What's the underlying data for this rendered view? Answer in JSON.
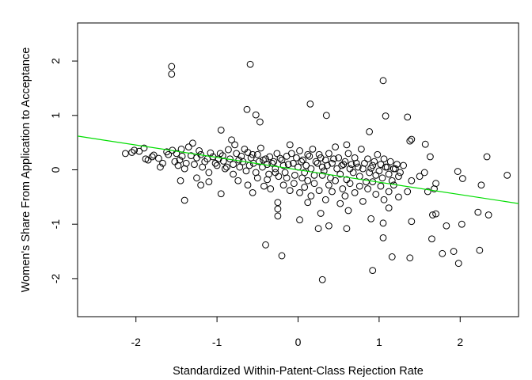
{
  "chart_data": {
    "type": "scatter",
    "xlabel": "Standardized Within-Patent-Class Rejection Rate",
    "ylabel": "Women's Share From Application to Acceptance",
    "xlim": [
      -2.72,
      2.72
    ],
    "ylim": [
      -2.7,
      2.7
    ],
    "xticks": [
      -2,
      -1,
      0,
      1,
      2
    ],
    "yticks": [
      -2,
      -1,
      0,
      1,
      2
    ],
    "grid": false,
    "point_color": "#000000",
    "fit_line": {
      "color": "#00dd00",
      "x": [
        -2.72,
        2.72
      ],
      "y": [
        0.62,
        -0.62
      ]
    },
    "points": [
      [
        -1.56,
        1.9
      ],
      [
        -1.56,
        1.76
      ],
      [
        -0.59,
        1.94
      ],
      [
        1.05,
        1.64
      ],
      [
        0.15,
        1.21
      ],
      [
        -0.63,
        1.11
      ],
      [
        -0.52,
        1.01
      ],
      [
        0.35,
        1.0
      ],
      [
        1.08,
        0.99
      ],
      [
        1.35,
        0.97
      ],
      [
        -0.47,
        0.88
      ],
      [
        0.88,
        0.7
      ],
      [
        -0.95,
        0.73
      ],
      [
        0.6,
        0.46
      ],
      [
        1.4,
        0.56
      ],
      [
        1.38,
        0.53
      ],
      [
        1.57,
        0.47
      ],
      [
        1.63,
        0.24
      ],
      [
        2.33,
        0.24
      ],
      [
        2.58,
        -0.1
      ],
      [
        1.97,
        -0.03
      ],
      [
        2.03,
        -0.16
      ],
      [
        2.26,
        -0.28
      ],
      [
        1.7,
        -0.25
      ],
      [
        1.68,
        -0.35
      ],
      [
        -2.13,
        0.3
      ],
      [
        -2.05,
        0.32
      ],
      [
        -2.02,
        0.36
      ],
      [
        -1.96,
        0.34
      ],
      [
        -1.88,
        0.2
      ],
      [
        -1.8,
        0.24
      ],
      [
        -1.72,
        0.21
      ],
      [
        -1.67,
        0.12
      ],
      [
        -1.6,
        0.28
      ],
      [
        -1.55,
        0.36
      ],
      [
        -1.5,
        0.3
      ],
      [
        -1.46,
        0.18
      ],
      [
        -1.43,
        0.25
      ],
      [
        -1.4,
        0.02
      ],
      [
        -1.35,
        0.42
      ],
      [
        -1.3,
        0.49
      ],
      [
        -1.25,
        0.22
      ],
      [
        -1.2,
        0.28
      ],
      [
        -1.18,
        0.05
      ],
      [
        -1.12,
        0.2
      ],
      [
        -1.08,
        0.31
      ],
      [
        -1.02,
        0.12
      ],
      [
        -0.98,
        0.2
      ],
      [
        -0.93,
        0.26
      ],
      [
        -0.9,
        0.02
      ],
      [
        -0.86,
        0.37
      ],
      [
        -0.82,
        0.55
      ],
      [
        -0.78,
        0.46
      ],
      [
        -0.73,
        0.18
      ],
      [
        -0.7,
        0.25
      ],
      [
        -0.66,
        0.38
      ],
      [
        -0.62,
        0.32
      ],
      [
        -0.58,
        0.22
      ],
      [
        -0.55,
        0.12
      ],
      [
        -0.5,
        0.28
      ],
      [
        -0.46,
        0.4
      ],
      [
        -0.43,
        0.18
      ],
      [
        -0.38,
        0.1
      ],
      [
        -0.35,
        0.24
      ],
      [
        -0.3,
        0.15
      ],
      [
        -0.26,
        0.3
      ],
      [
        -0.22,
        0.21
      ],
      [
        -0.18,
        0.08
      ],
      [
        -0.14,
        0.25
      ],
      [
        -0.1,
        0.46
      ],
      [
        -0.06,
        0.12
      ],
      [
        -0.02,
        0.22
      ],
      [
        0.02,
        0.35
      ],
      [
        0.06,
        0.18
      ],
      [
        0.1,
        0.08
      ],
      [
        0.14,
        0.25
      ],
      [
        0.18,
        0.38
      ],
      [
        0.22,
        0.15
      ],
      [
        0.26,
        0.28
      ],
      [
        0.3,
        0.05
      ],
      [
        0.34,
        0.18
      ],
      [
        0.38,
        0.3
      ],
      [
        0.42,
        0.12
      ],
      [
        0.46,
        0.42
      ],
      [
        0.5,
        0.22
      ],
      [
        0.54,
        0.08
      ],
      [
        0.58,
        0.15
      ],
      [
        0.62,
        0.3
      ],
      [
        0.66,
        0.1
      ],
      [
        0.7,
        0.22
      ],
      [
        0.74,
        0.05
      ],
      [
        0.78,
        0.38
      ],
      [
        0.82,
        0.12
      ],
      [
        0.86,
        0.2
      ],
      [
        0.9,
        0.03
      ],
      [
        0.94,
        0.15
      ],
      [
        0.98,
        0.28
      ],
      [
        1.02,
        0.1
      ],
      [
        1.06,
        0.2
      ],
      [
        1.1,
        0.05
      ],
      [
        1.14,
        0.15
      ],
      [
        1.18,
        0.02
      ],
      [
        1.22,
        0.1
      ],
      [
        1.26,
        -0.05
      ],
      [
        1.3,
        0.08
      ],
      [
        -1.9,
        0.4
      ],
      [
        -1.85,
        0.18
      ],
      [
        -1.78,
        0.27
      ],
      [
        -1.7,
        0.05
      ],
      [
        -1.62,
        0.33
      ],
      [
        -1.52,
        0.15
      ],
      [
        -1.48,
        0.08
      ],
      [
        -1.44,
        0.38
      ],
      [
        -1.38,
        0.12
      ],
      [
        -1.32,
        0.26
      ],
      [
        -1.28,
        0.1
      ],
      [
        -1.22,
        0.35
      ],
      [
        -1.15,
        0.15
      ],
      [
        -1.1,
        -0.05
      ],
      [
        -1.05,
        0.24
      ],
      [
        -1.0,
        0.08
      ],
      [
        -0.96,
        0.3
      ],
      [
        -0.92,
        0.16
      ],
      [
        -0.88,
        0.05
      ],
      [
        -0.84,
        0.2
      ],
      [
        -0.8,
        0.1
      ],
      [
        -0.76,
        0.3
      ],
      [
        -0.72,
        0.05
      ],
      [
        -0.68,
        0.15
      ],
      [
        -0.64,
        -0.02
      ],
      [
        -0.6,
        0.08
      ],
      [
        -0.56,
        0.28
      ],
      [
        -0.52,
        -0.05
      ],
      [
        -0.48,
        0.15
      ],
      [
        -0.44,
        0.05
      ],
      [
        -0.4,
        0.2
      ],
      [
        -0.36,
        -0.08
      ],
      [
        -0.32,
        0.12
      ],
      [
        -0.28,
        0.02
      ],
      [
        -0.24,
        -0.12
      ],
      [
        -0.2,
        0.18
      ],
      [
        -0.16,
        -0.05
      ],
      [
        -0.12,
        0.1
      ],
      [
        -0.08,
        0.3
      ],
      [
        -0.04,
        -0.1
      ],
      [
        0.0,
        0.05
      ],
      [
        0.04,
        0.15
      ],
      [
        0.08,
        -0.05
      ],
      [
        0.12,
        0.28
      ],
      [
        0.16,
        0.02
      ],
      [
        0.2,
        -0.1
      ],
      [
        0.24,
        0.12
      ],
      [
        0.28,
        0.22
      ],
      [
        0.32,
        -0.02
      ],
      [
        0.36,
        0.08
      ],
      [
        0.4,
        -0.15
      ],
      [
        0.44,
        0.2
      ],
      [
        0.48,
        0.02
      ],
      [
        0.52,
        -0.08
      ],
      [
        0.56,
        0.1
      ],
      [
        0.6,
        -0.18
      ],
      [
        0.64,
        0.02
      ],
      [
        0.68,
        -0.05
      ],
      [
        0.72,
        0.12
      ],
      [
        0.76,
        -0.12
      ],
      [
        0.8,
        0.02
      ],
      [
        0.84,
        -0.22
      ],
      [
        0.88,
        -0.05
      ],
      [
        0.92,
        0.08
      ],
      [
        0.96,
        -0.1
      ],
      [
        1.0,
        -0.02
      ],
      [
        1.04,
        -0.15
      ],
      [
        1.08,
        0.05
      ],
      [
        1.12,
        -0.08
      ],
      [
        1.16,
        -0.2
      ],
      [
        1.2,
        0.02
      ],
      [
        1.24,
        -0.12
      ],
      [
        -1.45,
        -0.2
      ],
      [
        -1.4,
        -0.56
      ],
      [
        -1.25,
        -0.15
      ],
      [
        -1.2,
        -0.28
      ],
      [
        -1.1,
        -0.22
      ],
      [
        -0.95,
        -0.44
      ],
      [
        -0.8,
        -0.08
      ],
      [
        -0.74,
        -0.2
      ],
      [
        -0.62,
        -0.28
      ],
      [
        -0.56,
        -0.42
      ],
      [
        -0.5,
        -0.15
      ],
      [
        -0.42,
        -0.3
      ],
      [
        -0.38,
        -0.18
      ],
      [
        -0.34,
        -0.35
      ],
      [
        -0.28,
        -0.05
      ],
      [
        -0.25,
        -0.6
      ],
      [
        -0.25,
        -0.72
      ],
      [
        -0.25,
        -0.85
      ],
      [
        -0.18,
        -0.28
      ],
      [
        -0.14,
        -0.15
      ],
      [
        -0.1,
        -0.38
      ],
      [
        -0.05,
        -0.25
      ],
      [
        0.02,
        -0.42
      ],
      [
        0.05,
        -0.15
      ],
      [
        0.08,
        -0.32
      ],
      [
        0.12,
        -0.2
      ],
      [
        0.16,
        -0.48
      ],
      [
        0.2,
        -0.25
      ],
      [
        0.26,
        -0.38
      ],
      [
        0.3,
        -0.1
      ],
      [
        0.34,
        -0.55
      ],
      [
        0.38,
        -0.28
      ],
      [
        0.42,
        -0.4
      ],
      [
        0.46,
        -0.2
      ],
      [
        0.52,
        -0.62
      ],
      [
        0.55,
        -0.35
      ],
      [
        0.58,
        -0.48
      ],
      [
        0.64,
        -0.25
      ],
      [
        0.7,
        -0.42
      ],
      [
        0.76,
        -0.3
      ],
      [
        0.8,
        -0.58
      ],
      [
        0.86,
        -0.35
      ],
      [
        0.92,
        -0.22
      ],
      [
        0.96,
        -0.45
      ],
      [
        1.02,
        -0.3
      ],
      [
        1.06,
        -0.55
      ],
      [
        1.12,
        -0.4
      ],
      [
        1.18,
        -0.28
      ],
      [
        1.24,
        -0.5
      ],
      [
        1.35,
        -0.4
      ],
      [
        1.4,
        -0.2
      ],
      [
        1.5,
        -0.12
      ],
      [
        1.56,
        -0.05
      ],
      [
        1.6,
        -0.4
      ],
      [
        -0.4,
        -1.38
      ],
      [
        -0.2,
        -1.58
      ],
      [
        0.02,
        -0.92
      ],
      [
        0.12,
        -0.6
      ],
      [
        0.25,
        -1.08
      ],
      [
        0.28,
        -0.8
      ],
      [
        0.3,
        -2.02
      ],
      [
        0.38,
        -1.03
      ],
      [
        0.6,
        -1.08
      ],
      [
        0.62,
        -0.75
      ],
      [
        0.9,
        -0.9
      ],
      [
        0.92,
        -1.85
      ],
      [
        1.05,
        -1.25
      ],
      [
        1.05,
        -0.98
      ],
      [
        1.12,
        -0.7
      ],
      [
        1.16,
        -1.6
      ],
      [
        1.38,
        -1.62
      ],
      [
        1.4,
        -0.95
      ],
      [
        1.65,
        -1.27
      ],
      [
        1.66,
        -0.83
      ],
      [
        1.7,
        -0.81
      ],
      [
        1.78,
        -1.54
      ],
      [
        1.83,
        -1.03
      ],
      [
        1.92,
        -1.5
      ],
      [
        1.98,
        -1.72
      ],
      [
        2.02,
        -1.0
      ],
      [
        2.22,
        -0.78
      ],
      [
        2.24,
        -1.48
      ],
      [
        2.35,
        -0.83
      ]
    ]
  }
}
